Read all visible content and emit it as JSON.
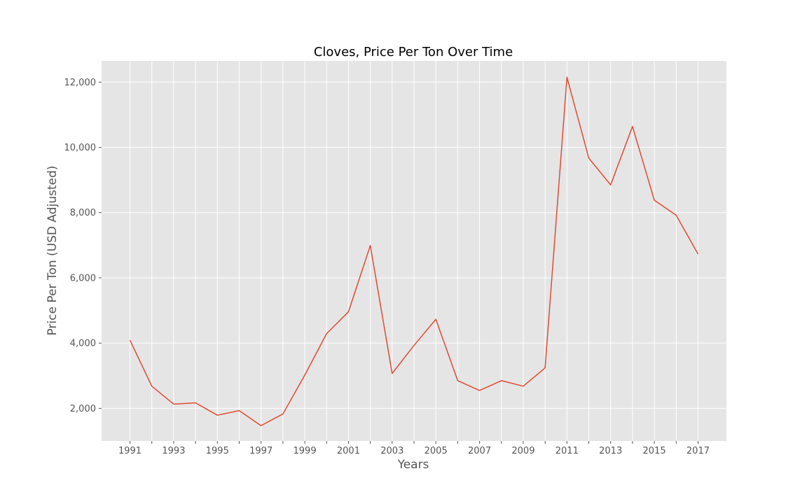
{
  "chart_data": {
    "type": "line",
    "title": "Cloves, Price Per Ton Over Time",
    "xlabel": "Years",
    "ylabel": "Price Per Ton (USD Adjusted)",
    "x": [
      1991,
      1992,
      1993,
      1994,
      1995,
      1996,
      1997,
      1998,
      1999,
      2000,
      2001,
      2002,
      2003,
      2004,
      2005,
      2006,
      2007,
      2008,
      2009,
      2010,
      2011,
      2012,
      2013,
      2014,
      2015,
      2016,
      2017
    ],
    "series": [
      {
        "values": [
          4090,
          2680,
          2130,
          2170,
          1790,
          1930,
          1470,
          1830,
          3020,
          4290,
          4960,
          6990,
          3070,
          3930,
          4730,
          2850,
          2550,
          2850,
          2680,
          3240,
          12150,
          9670,
          8850,
          10640,
          8380,
          7920,
          6730
        ],
        "color": "#e24a33"
      }
    ],
    "x_ticks": [
      "1991",
      "1993",
      "1995",
      "1997",
      "1999",
      "2001",
      "2003",
      "2005",
      "2007",
      "2009",
      "2011",
      "2013",
      "2015",
      "2017"
    ],
    "y_ticks": [
      {
        "value": 2000,
        "label": "2,000"
      },
      {
        "value": 4000,
        "label": "4,000"
      },
      {
        "value": 6000,
        "label": "6,000"
      },
      {
        "value": 8000,
        "label": "8,000"
      },
      {
        "value": 10000,
        "label": "10,000"
      },
      {
        "value": 12000,
        "label": "12,000"
      }
    ],
    "xlim": [
      1989.7,
      2018.3
    ],
    "ylim": [
      1000,
      12650
    ],
    "grid": true,
    "background": "#e5e5e5",
    "grid_color": "#ffffff",
    "tick_color": "#555555"
  }
}
